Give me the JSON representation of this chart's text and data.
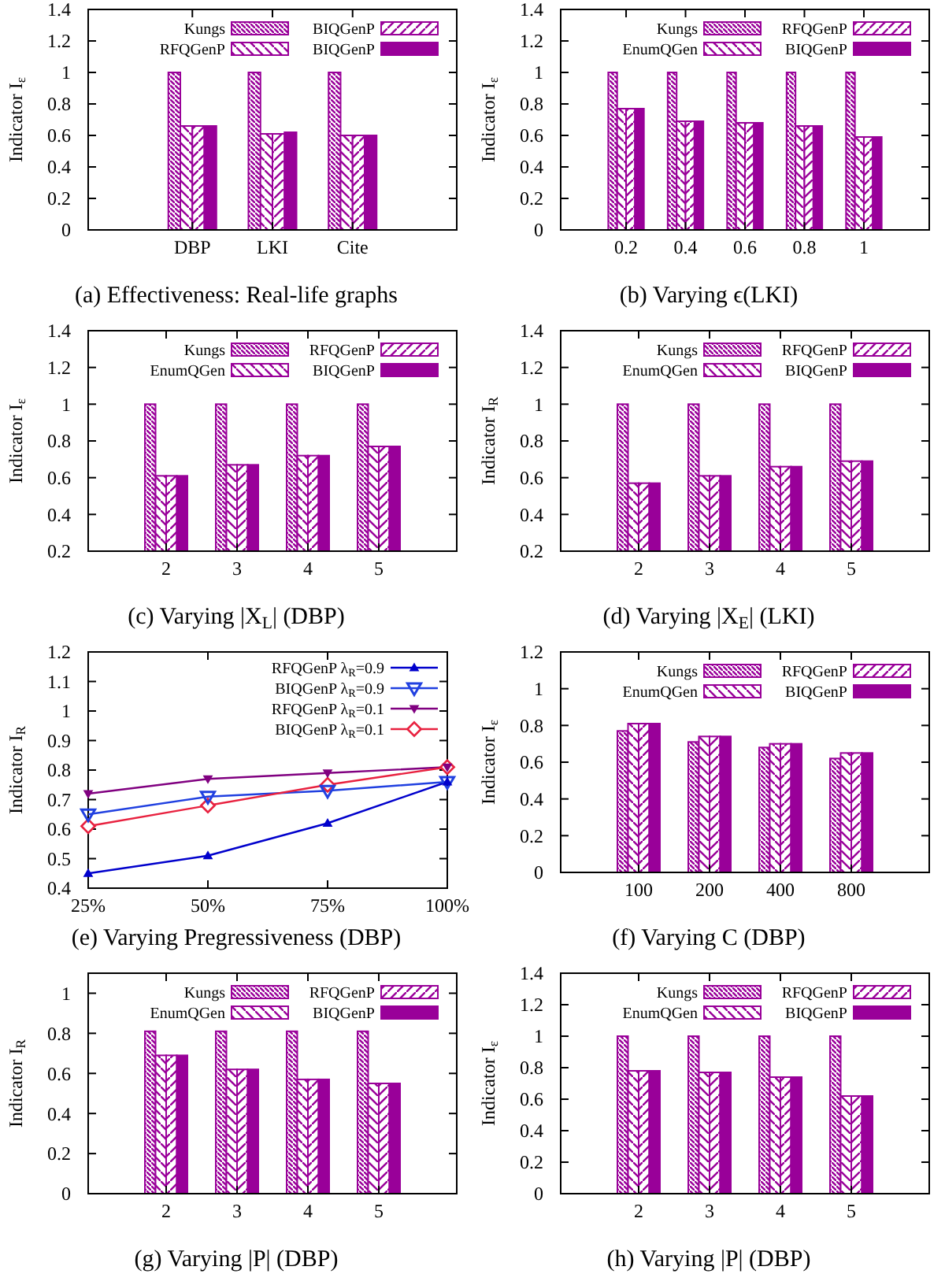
{
  "chart_data": [
    {
      "type": "bar",
      "title": "(a) Effectiveness: Real-life graphs",
      "ylabel": "Indicator I$_{ε}$",
      "categories": [
        "DBP",
        "LKI",
        "Cite"
      ],
      "ylim": [
        0,
        1.4
      ],
      "yticks": [
        0,
        0.2,
        0.4,
        0.6,
        0.8,
        1,
        1.2,
        1.4
      ],
      "legend": "top",
      "series": [
        {
          "name": "Kungs",
          "color": "#990099",
          "values": [
            1,
            1,
            1
          ]
        },
        {
          "name": "RFQGenP",
          "color": "#990099",
          "values": [
            0.66,
            0.61,
            0.6
          ]
        },
        {
          "name": "BIQGenP",
          "color": "#990099",
          "values": [
            0.66,
            0.61,
            0.6
          ]
        },
        {
          "name": "BIQGenP",
          "color": "#990099",
          "values": [
            0.66,
            0.62,
            0.6
          ]
        }
      ]
    },
    {
      "type": "bar",
      "title": "(b) Varying ϵ(LKI)",
      "ylabel": "Indicator I$_{ε}$",
      "categories": [
        "0.2",
        "0.4",
        "0.6",
        "0.8",
        "1"
      ],
      "ylim": [
        0,
        1.4
      ],
      "yticks": [
        0,
        0.2,
        0.4,
        0.6,
        0.8,
        1,
        1.2,
        1.4
      ],
      "legend": "top",
      "series": [
        {
          "name": "Kungs",
          "color": "#990099",
          "values": [
            1,
            1,
            1,
            1,
            1
          ]
        },
        {
          "name": "EnumQGen",
          "color": "#990099",
          "values": [
            0.77,
            0.69,
            0.68,
            0.66,
            0.59
          ]
        },
        {
          "name": "RFQGenP",
          "color": "#990099",
          "values": [
            0.77,
            0.69,
            0.68,
            0.66,
            0.59
          ]
        },
        {
          "name": "BIQGenP",
          "color": "#990099",
          "values": [
            0.77,
            0.69,
            0.68,
            0.66,
            0.59
          ]
        }
      ]
    },
    {
      "type": "bar",
      "title": "(c) Varying |X$_{L}$| (DBP)",
      "ylabel": "Indicator I$_{ε}$",
      "categories": [
        "2",
        "3",
        "4",
        "5"
      ],
      "ylim": [
        0.2,
        1.4
      ],
      "yticks": [
        0.2,
        0.4,
        0.6,
        0.8,
        1,
        1.2,
        1.4
      ],
      "legend": "top",
      "series": [
        {
          "name": "Kungs",
          "color": "#990099",
          "values": [
            1,
            1,
            1,
            1
          ]
        },
        {
          "name": "EnumQGen",
          "color": "#990099",
          "values": [
            0.61,
            0.67,
            0.72,
            0.77
          ]
        },
        {
          "name": "RFQGenP",
          "color": "#990099",
          "values": [
            0.61,
            0.67,
            0.72,
            0.77
          ]
        },
        {
          "name": "BIQGenP",
          "color": "#990099",
          "values": [
            0.61,
            0.67,
            0.72,
            0.77
          ]
        }
      ]
    },
    {
      "type": "bar",
      "title": "(d) Varying |X$_{E}$| (LKI)",
      "ylabel": "Indicator I$_{R}$",
      "categories": [
        "2",
        "3",
        "4",
        "5"
      ],
      "ylim": [
        0.2,
        1.4
      ],
      "yticks": [
        0.2,
        0.4,
        0.6,
        0.8,
        1,
        1.2,
        1.4
      ],
      "legend": "top",
      "series": [
        {
          "name": "Kungs",
          "color": "#990099",
          "values": [
            1,
            1,
            1,
            1
          ]
        },
        {
          "name": "EnumQGen",
          "color": "#990099",
          "values": [
            0.57,
            0.61,
            0.66,
            0.69
          ]
        },
        {
          "name": "RFQGenP",
          "color": "#990099",
          "values": [
            0.57,
            0.61,
            0.66,
            0.69
          ]
        },
        {
          "name": "BIQGenP",
          "color": "#990099",
          "values": [
            0.57,
            0.61,
            0.66,
            0.69
          ]
        }
      ]
    },
    {
      "type": "line",
      "title": "(e) Varying Pregressiveness (DBP)",
      "ylabel": "Indicator I$_{R}$",
      "x": [
        25,
        50,
        75,
        100
      ],
      "xlim": [
        25,
        100
      ],
      "xticks": [
        {
          "value": 25,
          "label": "25%"
        },
        {
          "value": 50,
          "label": "50%"
        },
        {
          "value": 75,
          "label": "75%"
        },
        {
          "value": 100,
          "label": "100%"
        }
      ],
      "ylim": [
        0.4,
        1.2
      ],
      "yticks": [
        0.4,
        0.5,
        0.6,
        0.7,
        0.8,
        0.9,
        1,
        1.1,
        1.2
      ],
      "legend": "top right",
      "series": [
        {
          "name": "RFQGenP λ$_{R}$=0.9",
          "color": "#0000cc",
          "marker": "triangle",
          "values": [
            0.45,
            0.51,
            0.62,
            0.76
          ]
        },
        {
          "name": "BIQGenP λ$_{R}$=0.9",
          "color": "#2040e0",
          "marker": "triangle-down-open",
          "values": [
            0.65,
            0.71,
            0.73,
            0.76
          ]
        },
        {
          "name": "RFQGenP λ$_{R}$=0.1",
          "color": "#800080",
          "marker": "triangle-down",
          "values": [
            0.72,
            0.77,
            0.79,
            0.81
          ]
        },
        {
          "name": "BIQGenP λ$_{R}$=0.1",
          "color": "#e8213f",
          "marker": "diamond-open",
          "values": [
            0.61,
            0.68,
            0.75,
            0.81
          ]
        }
      ]
    },
    {
      "type": "bar",
      "title": "(f) Varying C (DBP)",
      "ylabel": "Indicator I$_{ε}$",
      "categories": [
        "100",
        "200",
        "400",
        "800"
      ],
      "ylim": [
        0,
        1.2
      ],
      "yticks": [
        0,
        0.2,
        0.4,
        0.6,
        0.8,
        1,
        1.2
      ],
      "legend": "top",
      "series": [
        {
          "name": "Kungs",
          "color": "#990099",
          "values": [
            0.77,
            0.71,
            0.68,
            0.62
          ]
        },
        {
          "name": "EnumQGen",
          "color": "#990099",
          "values": [
            0.81,
            0.74,
            0.7,
            0.65
          ]
        },
        {
          "name": "RFQGenP",
          "color": "#990099",
          "values": [
            0.81,
            0.74,
            0.7,
            0.65
          ]
        },
        {
          "name": "BIQGenP",
          "color": "#990099",
          "values": [
            0.81,
            0.74,
            0.7,
            0.65
          ]
        }
      ]
    },
    {
      "type": "bar",
      "title": "(g) Varying |P| (DBP)",
      "ylabel": "Indicator I$_{R}$",
      "categories": [
        "2",
        "3",
        "4",
        "5"
      ],
      "ylim": [
        0,
        1.1
      ],
      "yticks": [
        0,
        0.2,
        0.4,
        0.6,
        0.8,
        1
      ],
      "legend": "top",
      "series": [
        {
          "name": "Kungs",
          "color": "#990099",
          "values": [
            0.81,
            0.81,
            0.81,
            0.81
          ]
        },
        {
          "name": "EnumQGen",
          "color": "#990099",
          "values": [
            0.69,
            0.62,
            0.57,
            0.55
          ]
        },
        {
          "name": "RFQGenP",
          "color": "#990099",
          "values": [
            0.69,
            0.62,
            0.57,
            0.55
          ]
        },
        {
          "name": "BIQGenP",
          "color": "#990099",
          "values": [
            0.69,
            0.62,
            0.57,
            0.55
          ]
        }
      ]
    },
    {
      "type": "bar",
      "title": "(h) Varying |P| (DBP)",
      "ylabel": "Indicator I$_{ε}$",
      "categories": [
        "2",
        "3",
        "4",
        "5"
      ],
      "ylim": [
        0,
        1.4
      ],
      "yticks": [
        0,
        0.2,
        0.4,
        0.6,
        0.8,
        1,
        1.2,
        1.4
      ],
      "legend": "top",
      "series": [
        {
          "name": "Kungs",
          "color": "#990099",
          "values": [
            1,
            1,
            1,
            1
          ]
        },
        {
          "name": "EnumQGen",
          "color": "#990099",
          "values": [
            0.78,
            0.77,
            0.74,
            0.62
          ]
        },
        {
          "name": "RFQGenP",
          "color": "#990099",
          "values": [
            0.78,
            0.77,
            0.74,
            0.62
          ]
        },
        {
          "name": "BIQGenP",
          "color": "#990099",
          "values": [
            0.78,
            0.77,
            0.74,
            0.62
          ]
        }
      ]
    }
  ]
}
